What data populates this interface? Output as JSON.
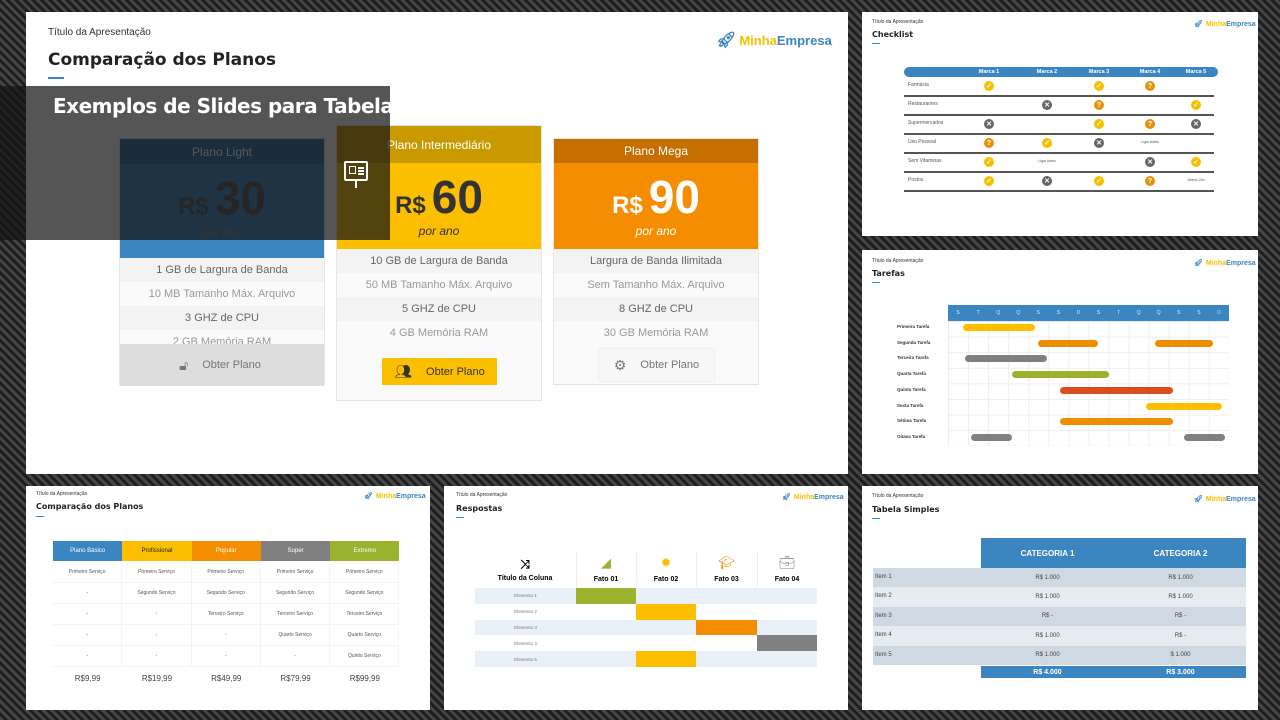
{
  "common": {
    "subtitle": "Título da Apresentação",
    "logo_a": "Minha",
    "logo_b": "Empresa"
  },
  "overlay": {
    "title": "Exemplos de Slides para Tabelas"
  },
  "colors": {
    "blue": "#3b86c0",
    "yellow": "#fbbf00",
    "orange": "#f58d00",
    "gray": "#808080",
    "green": "#9ab22e",
    "red": "#d9501e"
  },
  "main": {
    "title": "Comparação dos Planos",
    "plans": [
      {
        "name": "Plano Light",
        "currency": "R$",
        "price": "30",
        "period": "por ano",
        "features": [
          "1 GB de Largura de Banda",
          "10 MB Tamanho Máx. Arquivo",
          "3 GHZ de CPU",
          "2 GB Memória RAM"
        ],
        "button": "Obter Plano",
        "icon": "unlock-icon"
      },
      {
        "name": "Plano Intermediário",
        "currency": "R$",
        "price": "60",
        "period": "por ano",
        "features": [
          "10 GB de Largura de Banda",
          "50 MB Tamanho Máx. Arquivo",
          "5 GHZ de CPU",
          "4 GB Memória RAM"
        ],
        "button": "Obter Plano",
        "icon": "users-icon"
      },
      {
        "name": "Plano Mega",
        "currency": "R$",
        "price": "90",
        "period": "por ano",
        "features": [
          "Largura de Banda Ilimitada",
          "Sem Tamanho Máx. Arquivo",
          "8 GHZ de CPU",
          "30 GB Memória RAM"
        ],
        "button": "Obter Plano",
        "icon": "gear-icon"
      }
    ]
  },
  "checklist": {
    "title": "Checklist",
    "columns": [
      "Marca 1",
      "Marca 2",
      "Marca 3",
      "Marca 4",
      "Marca 5"
    ],
    "rows": [
      {
        "label": "Farmácia",
        "cells": [
          "check",
          "",
          "check",
          "question",
          ""
        ]
      },
      {
        "label": "Restaurantes",
        "cells": [
          "",
          "x",
          "question",
          "",
          "check"
        ]
      },
      {
        "label": "Supermercados",
        "cells": [
          "x",
          "",
          "check",
          "question",
          "x"
        ]
      },
      {
        "label": "Uso Pessoal",
        "cells": [
          "question",
          "check",
          "x",
          "Ligar Antes",
          ""
        ]
      },
      {
        "label": "Sem Vitaminas",
        "cells": [
          "check",
          "Ligar Antes",
          "",
          "x",
          "check"
        ]
      },
      {
        "label": "Postos",
        "cells": [
          "check",
          "x",
          "check",
          "question",
          "Aberto 24h"
        ]
      }
    ]
  },
  "tarefas": {
    "title": "Tarefas",
    "days": [
      "S",
      "T",
      "Q",
      "Q",
      "S",
      "S",
      "D",
      "S",
      "T",
      "Q",
      "Q",
      "S",
      "S",
      "D"
    ],
    "tasks": [
      {
        "label": "Primeira Tarefa",
        "color": "#fbbf00",
        "spans": [
          [
            0.75,
            4.35
          ]
        ]
      },
      {
        "label": "Segunda Tarefa",
        "color": "#f08c00",
        "spans": [
          [
            4.5,
            7.45
          ],
          [
            10.3,
            13.2
          ]
        ]
      },
      {
        "label": "Terceira Tarefa",
        "color": "#808080",
        "spans": [
          [
            0.85,
            4.95
          ]
        ]
      },
      {
        "label": "Quarta Tarefa",
        "color": "#9ab22e",
        "spans": [
          [
            3.2,
            8.0
          ]
        ]
      },
      {
        "label": "Quinta Tarefa",
        "color": "#d9501e",
        "spans": [
          [
            5.6,
            11.2
          ]
        ]
      },
      {
        "label": "Sexta Tarefa",
        "color": "#fbbf00",
        "spans": [
          [
            9.85,
            13.65
          ]
        ]
      },
      {
        "label": "Sétima Tarefa",
        "color": "#f08c00",
        "spans": [
          [
            5.6,
            11.2
          ]
        ]
      },
      {
        "label": "Oitava Tarefa",
        "color": "#808080",
        "spans": [
          [
            1.15,
            3.2
          ],
          [
            11.75,
            13.8
          ]
        ]
      }
    ]
  },
  "planos2": {
    "title": "Comparação dos Planos",
    "columns": [
      {
        "name": "Plano Básico",
        "color": "#3b86c0",
        "text": "#fff"
      },
      {
        "name": "Profissional",
        "color": "#fbbf00",
        "text": "#222"
      },
      {
        "name": "Popular",
        "color": "#f58d00",
        "text": "#fff"
      },
      {
        "name": "Super",
        "color": "#808080",
        "text": "#fff"
      },
      {
        "name": "Extremo",
        "color": "#9ab22e",
        "text": "#fff"
      }
    ],
    "rows": [
      [
        "Primeiro Serviço",
        "Primeiro Serviço",
        "Primeiro Serviço",
        "Primeiro Serviço",
        "Primeiro Serviço"
      ],
      [
        "-",
        "Segundo Serviço",
        "Segundo Serviço",
        "Segundo Serviço",
        "Segundo Serviço"
      ],
      [
        "-",
        "-",
        "Terceiro Serviço",
        "Terceiro Serviço",
        "Terceiro Serviço"
      ],
      [
        "-",
        "-",
        "-",
        "Quarto Serviço",
        "Quarto Serviço"
      ],
      [
        "-",
        "-",
        "-",
        "-",
        "Quinto Serviço"
      ]
    ],
    "prices": [
      "R$9,99",
      "R$19,99",
      "R$49,99",
      "R$79,99",
      "R$99,99"
    ]
  },
  "respostas": {
    "title": "Respostas",
    "corner": "Título da Coluna",
    "corner_icon": "shuffle-icon",
    "columns": [
      {
        "name": "Fato 01",
        "icon": "chart-icon",
        "color": "#9ab22e"
      },
      {
        "name": "Fato 02",
        "icon": "gear-icon",
        "color": "#fbbf00"
      },
      {
        "name": "Fato 03",
        "icon": "graduation-cap-icon",
        "color": "#f58d00"
      },
      {
        "name": "Fato 04",
        "icon": "briefcase-icon",
        "color": "#808080"
      }
    ],
    "rows": [
      {
        "label": "Elemento 1",
        "active": 0
      },
      {
        "label": "Elemento 2",
        "active": 1
      },
      {
        "label": "Elemento 3",
        "active": 2
      },
      {
        "label": "Elemento 4",
        "active": 3
      },
      {
        "label": "Elemento 5",
        "active": 1
      }
    ]
  },
  "simples": {
    "title": "Tabela Simples",
    "columns": [
      "CATEGORIA 1",
      "CATEGORIA 2"
    ],
    "rows": [
      {
        "label": "Item 1",
        "values": [
          "R$ 1.000",
          "R$ 1.000"
        ]
      },
      {
        "label": "Item 2",
        "values": [
          "R$ 1.000",
          "R$ 1.000"
        ]
      },
      {
        "label": "Item 3",
        "values": [
          "R$ -",
          "R$ -"
        ]
      },
      {
        "label": "Item 4",
        "values": [
          "R$ 1.000",
          "R$ -"
        ]
      },
      {
        "label": "Item 5",
        "values": [
          "R$ 1.000",
          "$ 1.000"
        ]
      }
    ],
    "totals": [
      "R$ 4.000",
      "R$ 3.000"
    ]
  }
}
